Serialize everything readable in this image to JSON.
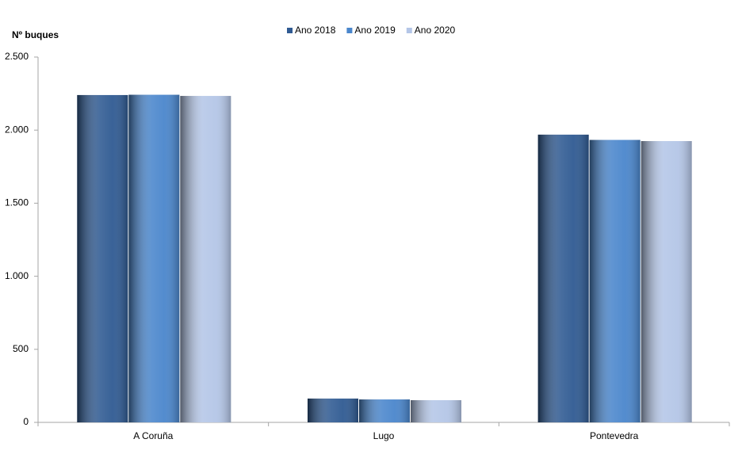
{
  "chart_data": {
    "type": "bar",
    "y_label": "Nº  buques",
    "categories": [
      "A Coruña",
      "Lugo",
      "Pontevedra"
    ],
    "series": [
      {
        "name": "Ano 2018",
        "color": "#2f5a92",
        "values": [
          2240,
          163,
          1969
        ]
      },
      {
        "name": "Ano 2019",
        "color": "#4a86cc",
        "values": [
          2242,
          157,
          1933
        ]
      },
      {
        "name": "Ano 2020",
        "color": "#b4c6e7",
        "values": [
          2234,
          152,
          1925
        ]
      }
    ],
    "ylim": [
      0,
      2500
    ],
    "yticks": [
      0,
      500,
      {
        "value": 1000,
        "label": "1.000"
      },
      {
        "value": 1500,
        "label": "1.500"
      },
      {
        "value": 2000,
        "label": "2.000"
      },
      {
        "value": 2500,
        "label": "2.500"
      }
    ],
    "grid": false,
    "legend": "top"
  }
}
